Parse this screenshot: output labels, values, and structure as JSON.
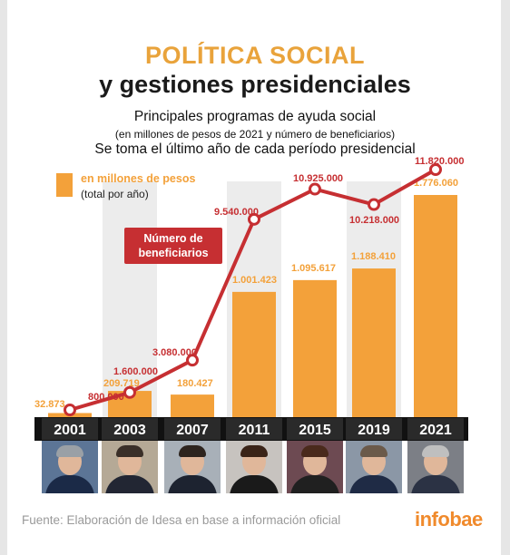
{
  "header": {
    "title_line1": "POLÍTICA SOCIAL",
    "title_line2": "y gestiones presidenciales",
    "subtitle1": "Principales programas de ayuda social",
    "subtitle2": "(en millones de pesos de 2021 y número de beneficiarios)",
    "subtitle3": "Se toma el último año de cada período presidencial"
  },
  "legend": {
    "bar_label": "en millones de pesos",
    "bar_sublabel": "(total por año)",
    "line_label_1": "Número de",
    "line_label_2": "beneficiarios"
  },
  "colors": {
    "title_orange": "#e9a33b",
    "bar": "#f3a13a",
    "line": "#c62f32",
    "year_box": "#2a2a2a",
    "shade": "#ececec",
    "logo": "#f08a2c"
  },
  "chart_data": {
    "type": "bar",
    "categories": [
      "2001",
      "2003",
      "2007",
      "2011",
      "2015",
      "2019",
      "2021"
    ],
    "series": [
      {
        "name": "en millones de pesos",
        "values": [
          32873,
          209719,
          180427,
          1001423,
          1095617,
          1188410,
          1776060
        ],
        "labels": [
          "32.873",
          "209.719",
          "180.427",
          "1.001.423",
          "1.095.617",
          "1.188.410",
          "1.776.060"
        ]
      },
      {
        "name": "Número de beneficiarios",
        "type": "line",
        "values": [
          800000,
          1600000,
          3080000,
          9540000,
          10925000,
          10218000,
          11820000
        ],
        "labels": [
          "800.000",
          "1.600.000",
          "3.080.000",
          "9.540.000",
          "10.925.000",
          "10.218.000",
          "11.820.000"
        ]
      }
    ]
  },
  "photos": [
    {
      "name": "president-2001-photo"
    },
    {
      "name": "president-2003-photo"
    },
    {
      "name": "president-2007-photo"
    },
    {
      "name": "president-2011-photo"
    },
    {
      "name": "president-2015-photo"
    },
    {
      "name": "president-2019-photo"
    },
    {
      "name": "president-2021-photo"
    }
  ],
  "footer": {
    "source": "Fuente: Elaboración de Idesa en base a información oficial",
    "logo": "infobae"
  }
}
